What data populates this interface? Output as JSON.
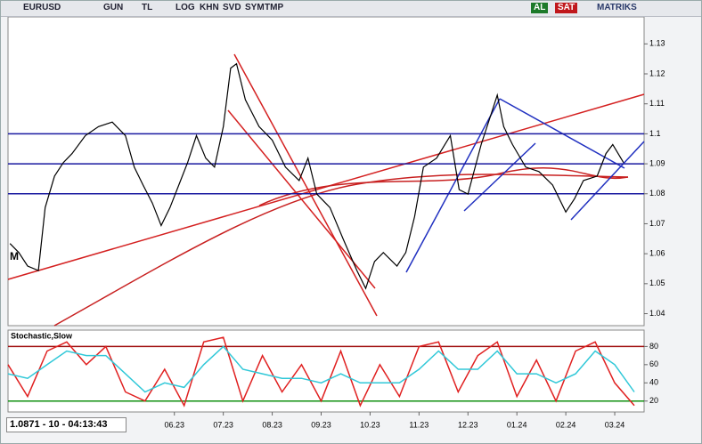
{
  "toolbar": {
    "symbol": "EURUSD",
    "buttons": [
      "GUN",
      "TL",
      "LOG",
      "KHN",
      "SVD",
      "SYM",
      "TMP"
    ],
    "buy": "AL",
    "sell": "SAT",
    "brand": "MATRIKS"
  },
  "status": "1.0871 - 10 - 04:13:43",
  "marker": "M",
  "chart_data": [
    {
      "type": "line",
      "color": "#000000",
      "x": [
        -2.36,
        -2.18,
        -2,
        -1.78,
        -1.64,
        -1.45,
        -1.27,
        -1.09,
        -0.82,
        -0.55,
        -0.27,
        0,
        0.18,
        0.36,
        0.55,
        0.73,
        0.91,
        1.09,
        1.27,
        1.45,
        1.64,
        1.82,
        2,
        2.15,
        2.27,
        2.45,
        2.73,
        3,
        3.27,
        3.55,
        3.73,
        3.91,
        4.18,
        4.45,
        4.73,
        4.91,
        5.09,
        5.27,
        5.55,
        5.73,
        5.91,
        6.09,
        6.36,
        6.64,
        6.82,
        7,
        7.27,
        7.45,
        7.6,
        7.73,
        7.91,
        8.18,
        8.45,
        8.73,
        9,
        9.18,
        9.36,
        9.64,
        9.82,
        9.96,
        10.18
      ],
      "values": [
        1.0634,
        1.0604,
        1.0559,
        1.0544,
        1.0754,
        1.0859,
        1.0904,
        1.0934,
        1.0994,
        1.1024,
        1.1039,
        1.0994,
        1.0889,
        1.0829,
        1.0769,
        1.0694,
        1.0754,
        1.0829,
        1.0904,
        1.0994,
        1.0919,
        1.0889,
        1.1024,
        1.1219,
        1.1234,
        1.1114,
        1.1024,
        1.0979,
        1.0889,
        1.0844,
        1.0919,
        1.0799,
        1.0754,
        1.0649,
        1.0544,
        1.0484,
        1.0574,
        1.0604,
        1.0559,
        1.0604,
        1.0724,
        1.0889,
        1.0919,
        1.0994,
        1.0814,
        1.0799,
        1.0964,
        1.1054,
        1.1129,
        1.1024,
        1.0964,
        1.0889,
        1.0874,
        1.0829,
        1.0739,
        1.0784,
        1.0844,
        1.0859,
        1.0934,
        1.0964,
        1.0904
      ],
      "xlim": [
        -2.4,
        10.6
      ],
      "ylim": [
        1.036,
        1.139
      ],
      "yticks": [
        1.04,
        1.05,
        1.06,
        1.07,
        1.08,
        1.09,
        1.1,
        1.11,
        1.12,
        1.13
      ],
      "hlines": [
        1.1,
        1.09,
        1.08
      ],
      "hline_color": "#1a1aa0"
    },
    {
      "type": "line",
      "title": "Stochastic,Slow",
      "x": [
        -2.4,
        -2,
        -1.6,
        -1.2,
        -0.8,
        -0.4,
        0,
        0.4,
        0.8,
        1.2,
        1.6,
        2,
        2.4,
        2.8,
        3.2,
        3.6,
        4,
        4.4,
        4.8,
        5.2,
        5.6,
        6,
        6.4,
        6.8,
        7.2,
        7.6,
        8,
        8.4,
        8.8,
        9.2,
        9.6,
        10,
        10.4
      ],
      "series": [
        {
          "color": "#e02020",
          "values": [
            60,
            25,
            75,
            85,
            60,
            80,
            30,
            20,
            55,
            15,
            85,
            90,
            20,
            70,
            30,
            60,
            20,
            75,
            15,
            60,
            25,
            80,
            85,
            30,
            70,
            85,
            25,
            65,
            20,
            75,
            85,
            40,
            15
          ]
        },
        {
          "color": "#30c8d8",
          "values": [
            50,
            45,
            60,
            75,
            70,
            70,
            50,
            30,
            40,
            35,
            60,
            80,
            55,
            50,
            45,
            45,
            40,
            50,
            40,
            40,
            40,
            55,
            75,
            55,
            55,
            75,
            50,
            50,
            40,
            50,
            75,
            60,
            30
          ]
        }
      ],
      "xlim": [
        -2.4,
        10.6
      ],
      "ylim": [
        8,
        98
      ],
      "yticks": [
        20,
        40,
        60,
        80
      ],
      "levels": [
        {
          "value": 80,
          "color": "#a01010"
        },
        {
          "value": 20,
          "color": "#109010"
        }
      ],
      "xticks": [
        {
          "value": 1,
          "label": "06.23"
        },
        {
          "value": 2,
          "label": "07.23"
        },
        {
          "value": 3,
          "label": "08.23"
        },
        {
          "value": 4,
          "label": "09.23"
        },
        {
          "value": 5,
          "label": "10.23"
        },
        {
          "value": 6,
          "label": "11.23"
        },
        {
          "value": 7,
          "label": "12.23"
        },
        {
          "value": 8,
          "label": "01.24"
        },
        {
          "value": 9,
          "label": "02.24"
        },
        {
          "value": 10,
          "label": "03.24"
        }
      ]
    }
  ]
}
